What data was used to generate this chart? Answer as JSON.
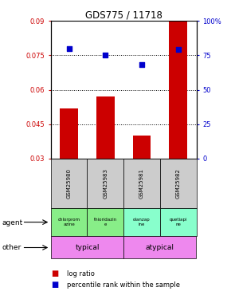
{
  "title": "GDS775 / 11718",
  "samples": [
    "GSM25980",
    "GSM25983",
    "GSM25981",
    "GSM25982"
  ],
  "log_ratio": [
    0.052,
    0.057,
    0.04,
    0.09
  ],
  "log_ratio_base": 0.03,
  "percentile_rank": [
    80,
    75,
    68,
    79
  ],
  "ylim_left": [
    0.03,
    0.09
  ],
  "ylim_right": [
    0,
    100
  ],
  "yticks_left": [
    0.03,
    0.045,
    0.06,
    0.075,
    0.09
  ],
  "yticks_right": [
    0,
    25,
    50,
    75,
    100
  ],
  "ytick_labels_left": [
    "0.03",
    "0.045",
    "0.06",
    "0.075",
    "0.09"
  ],
  "ytick_labels_right": [
    "0",
    "25",
    "50",
    "75",
    "100%"
  ],
  "bar_color": "#cc0000",
  "scatter_color": "#0000cc",
  "agent_labels": [
    "chlorprom\nazine",
    "thioridazin\ne",
    "olanzap\nine",
    "quetiapi\nne"
  ],
  "agent_colors": [
    "#88ee88",
    "#88ee88",
    "#88ffcc",
    "#88ffcc"
  ],
  "other_color": "#ee88ee",
  "gridline_color": "#000000"
}
